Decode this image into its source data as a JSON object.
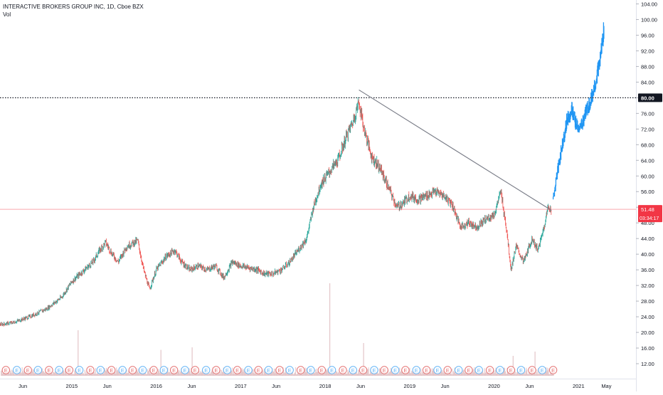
{
  "header": {
    "title": "INTERACTIVE BROKERS GROUP INC, 1D, Cboe BZX",
    "indicator": "Vol"
  },
  "colors": {
    "up": "#26a69a",
    "down": "#ef5350",
    "projection": "#2196f3",
    "trendline": "#787b86",
    "current_line": "#f23645",
    "dotted_line": "#131722",
    "volume": "#e3c5c8"
  },
  "price_scale": {
    "ticks": [
      12,
      16,
      20,
      24,
      28,
      32,
      36,
      40,
      44,
      48,
      52,
      56,
      60,
      64,
      68,
      72,
      76,
      80,
      84,
      88,
      92,
      96,
      100,
      104
    ],
    "tick_labels": [
      "12.00",
      "16.00",
      "20.00",
      "24.00",
      "28.00",
      "32.00",
      "36.00",
      "40.00",
      "44.00",
      "48.00",
      "52.00",
      "56.00",
      "60.00",
      "64.00",
      "68.00",
      "72.00",
      "76.00",
      "80.00",
      "84.00",
      "88.00",
      "92.00",
      "96.00",
      "100.00",
      "104.00"
    ],
    "min": 10,
    "max": 105
  },
  "time_axis": {
    "labels": [
      {
        "text": "Jun",
        "t": 2014.42
      },
      {
        "text": "2015",
        "t": 2015.0
      },
      {
        "text": "Jun",
        "t": 2015.42
      },
      {
        "text": "2016",
        "t": 2016.0
      },
      {
        "text": "Jun",
        "t": 2016.42
      },
      {
        "text": "2017",
        "t": 2017.0
      },
      {
        "text": "Jun",
        "t": 2017.42
      },
      {
        "text": "2018",
        "t": 2018.0
      },
      {
        "text": "Jun",
        "t": 2018.42
      },
      {
        "text": "2019",
        "t": 2019.0
      },
      {
        "text": "Jun",
        "t": 2019.42
      },
      {
        "text": "2020",
        "t": 2020.0
      },
      {
        "text": "Jun",
        "t": 2020.42
      },
      {
        "text": "2021",
        "t": 2021.0
      },
      {
        "text": "May",
        "t": 2021.33
      }
    ],
    "start": 2014.15,
    "end": 2021.68
  },
  "annotations": {
    "dotted_level": {
      "value": 80.0,
      "label": "80.00"
    },
    "current_price": {
      "value": 51.48,
      "label": "51.48",
      "countdown": "03:34:17"
    },
    "trendline": {
      "from": {
        "t": 2018.4,
        "price": 82.0
      },
      "to": {
        "t": 2020.68,
        "price": 51.2
      }
    },
    "earnings_marker": "E"
  },
  "chart_data": {
    "type": "candlestick",
    "title": "INTERACTIVE BROKERS GROUP INC, 1D, Cboe BZX",
    "series": [
      {
        "name": "",
        "kind": "price",
        "points": [
          [
            2014.15,
            22
          ],
          [
            2014.3,
            22.5
          ],
          [
            2014.5,
            24
          ],
          [
            2014.7,
            26
          ],
          [
            2014.88,
            29
          ],
          [
            2015.0,
            33
          ],
          [
            2015.1,
            35
          ],
          [
            2015.25,
            38
          ],
          [
            2015.33,
            41
          ],
          [
            2015.4,
            43
          ],
          [
            2015.48,
            40
          ],
          [
            2015.55,
            38
          ],
          [
            2015.65,
            42
          ],
          [
            2015.78,
            43.5
          ],
          [
            2015.85,
            36
          ],
          [
            2015.92,
            31
          ],
          [
            2016.0,
            36
          ],
          [
            2016.12,
            39.5
          ],
          [
            2016.22,
            41
          ],
          [
            2016.3,
            38
          ],
          [
            2016.4,
            36
          ],
          [
            2016.5,
            37
          ],
          [
            2016.6,
            36
          ],
          [
            2016.7,
            37
          ],
          [
            2016.8,
            34
          ],
          [
            2016.9,
            38
          ],
          [
            2017.0,
            37
          ],
          [
            2017.1,
            36.5
          ],
          [
            2017.2,
            36
          ],
          [
            2017.28,
            35
          ],
          [
            2017.38,
            35
          ],
          [
            2017.48,
            36
          ],
          [
            2017.58,
            38
          ],
          [
            2017.68,
            41
          ],
          [
            2017.78,
            44
          ],
          [
            2017.86,
            52
          ],
          [
            2017.95,
            58
          ],
          [
            2018.05,
            61
          ],
          [
            2018.15,
            64
          ],
          [
            2018.25,
            70
          ],
          [
            2018.33,
            74
          ],
          [
            2018.4,
            79
          ],
          [
            2018.46,
            72
          ],
          [
            2018.55,
            65
          ],
          [
            2018.65,
            62
          ],
          [
            2018.75,
            57
          ],
          [
            2018.85,
            52
          ],
          [
            2018.92,
            53
          ],
          [
            2019.0,
            55
          ],
          [
            2019.1,
            54
          ],
          [
            2019.2,
            55
          ],
          [
            2019.3,
            56
          ],
          [
            2019.4,
            55
          ],
          [
            2019.5,
            53
          ],
          [
            2019.6,
            47
          ],
          [
            2019.7,
            48
          ],
          [
            2019.8,
            47
          ],
          [
            2019.9,
            49
          ],
          [
            2020.0,
            50
          ],
          [
            2020.08,
            56
          ],
          [
            2020.15,
            46
          ],
          [
            2020.2,
            36
          ],
          [
            2020.26,
            42
          ],
          [
            2020.35,
            38
          ],
          [
            2020.45,
            44
          ],
          [
            2020.52,
            41
          ],
          [
            2020.58,
            46
          ],
          [
            2020.64,
            52
          ],
          [
            2020.68,
            51.48
          ]
        ]
      },
      {
        "name": "",
        "kind": "projection",
        "points": [
          [
            2020.7,
            54
          ],
          [
            2020.75,
            61
          ],
          [
            2020.8,
            67
          ],
          [
            2020.86,
            74
          ],
          [
            2020.92,
            77
          ],
          [
            2020.97,
            73
          ],
          [
            2021.02,
            72
          ],
          [
            2021.08,
            76
          ],
          [
            2021.14,
            79
          ],
          [
            2021.2,
            84
          ],
          [
            2021.25,
            89
          ],
          [
            2021.28,
            94
          ],
          [
            2021.3,
            97
          ]
        ]
      }
    ],
    "volume": {
      "spikes": [
        {
          "t": 2015.07,
          "level": 0.45
        },
        {
          "t": 2016.05,
          "level": 0.22
        },
        {
          "t": 2016.42,
          "level": 0.25
        },
        {
          "t": 2018.05,
          "level": 1.0
        },
        {
          "t": 2018.45,
          "level": 0.3
        },
        {
          "t": 2020.22,
          "level": 0.15
        },
        {
          "t": 2020.48,
          "level": 0.2
        }
      ]
    },
    "earnings": [
      2014.22,
      2014.35,
      2014.48,
      2014.6,
      2014.73,
      2014.85,
      2014.97,
      2015.09,
      2015.22,
      2015.34,
      2015.47,
      2015.6,
      2015.72,
      2015.84,
      2015.97,
      2016.09,
      2016.21,
      2016.34,
      2016.46,
      2016.59,
      2016.71,
      2016.84,
      2016.96,
      2017.09,
      2017.21,
      2017.33,
      2017.46,
      2017.58,
      2017.71,
      2017.83,
      2017.96,
      2018.08,
      2018.21,
      2018.33,
      2018.45,
      2018.58,
      2018.7,
      2018.83,
      2018.95,
      2019.08,
      2019.2,
      2019.33,
      2019.45,
      2019.58,
      2019.7,
      2019.82,
      2019.95,
      2020.07,
      2020.2,
      2020.32,
      2020.45,
      2020.57,
      2020.7
    ],
    "xlabel": "",
    "ylabel": "",
    "ylim": [
      10,
      105
    ],
    "grid": false,
    "legend": "top-left"
  }
}
